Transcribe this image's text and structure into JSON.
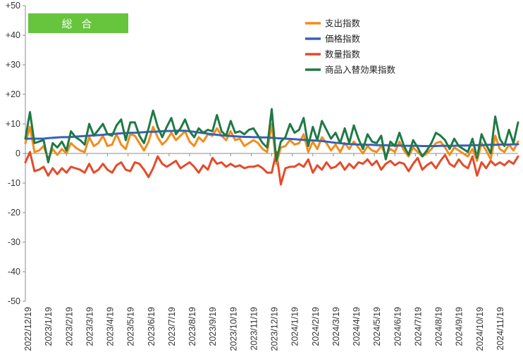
{
  "chart_data": {
    "type": "line",
    "badge": {
      "label": "総 合",
      "color": "#66c43d"
    },
    "ylim": [
      -50,
      50
    ],
    "yticks": [
      "+50",
      "+40",
      "+30",
      "+20",
      "+10",
      "0",
      "-10",
      "-20",
      "-30",
      "-40",
      "-50"
    ],
    "x_labels": [
      "2022/12/19",
      "2023/1/19",
      "2023/2/19",
      "2023/3/19",
      "2023/4/19",
      "2023/5/19",
      "2023/6/19",
      "2023/7/19",
      "2023/8/19",
      "2023/9/19",
      "2023/10/19",
      "2023/11/19",
      "2023/12/19",
      "2024/1/19",
      "2024/2/19",
      "2024/3/19",
      "2024/4/19",
      "2024/5/19",
      "2024/6/19",
      "2024/7/19",
      "2024/8/19",
      "2024/9/19",
      "2024/10/19",
      "2024/11/19"
    ],
    "grid": false,
    "legend_position": "top-right",
    "series": [
      {
        "name": "支出指数",
        "color": "#f28c1b",
        "values": [
          3.5,
          9.0,
          0.5,
          1.0,
          2.5,
          -2.0,
          1.5,
          -0.5,
          1.5,
          0.0,
          3.5,
          2.0,
          1.0,
          0.5,
          5.5,
          2.5,
          3.5,
          6.0,
          2.5,
          3.0,
          6.5,
          3.0,
          1.5,
          6.5,
          6.0,
          3.5,
          1.0,
          4.0,
          9.0,
          5.5,
          3.0,
          4.5,
          7.0,
          4.5,
          6.0,
          7.5,
          4.0,
          2.5,
          5.5,
          4.0,
          6.5,
          6.0,
          8.5,
          6.0,
          4.5,
          7.5,
          4.5,
          5.0,
          2.5,
          3.5,
          4.5,
          3.5,
          1.5,
          0.5,
          10.0,
          -3.5,
          2.0,
          2.5,
          4.5,
          3.0,
          3.5,
          6.5,
          0.5,
          4.0,
          1.5,
          5.5,
          3.5,
          1.0,
          3.0,
          0.5,
          3.5,
          1.5,
          4.0,
          2.0,
          0.0,
          2.5,
          1.0,
          0.5,
          2.5,
          -0.5,
          1.5,
          0.5,
          4.0,
          1.0,
          -1.0,
          2.0,
          0.5,
          -1.0,
          0.0,
          1.5,
          3.5,
          4.0,
          2.0,
          -0.5,
          2.0,
          1.0,
          0.0,
          -1.0,
          1.5,
          -2.5,
          3.5,
          1.0,
          -2.0,
          6.0,
          1.5,
          0.5,
          3.0,
          1.0,
          4.0
        ]
      },
      {
        "name": "価格指数",
        "color": "#3a5fbe",
        "values": [
          5.0,
          5.0,
          5.0,
          5.0,
          5.0,
          5.2,
          5.3,
          5.4,
          5.5,
          5.5,
          5.6,
          5.7,
          5.8,
          5.9,
          6.0,
          6.1,
          6.2,
          6.3,
          6.5,
          6.6,
          6.7,
          6.8,
          6.9,
          7.0,
          7.0,
          7.1,
          7.2,
          7.3,
          7.3,
          7.4,
          7.5,
          7.6,
          7.6,
          7.7,
          7.7,
          7.7,
          7.5,
          7.3,
          7.1,
          6.9,
          6.7,
          6.5,
          6.3,
          6.1,
          6.0,
          5.9,
          5.8,
          5.7,
          5.6,
          5.6,
          5.5,
          5.5,
          5.4,
          5.4,
          5.3,
          5.2,
          5.1,
          5.0,
          4.9,
          4.8,
          4.7,
          4.6,
          4.5,
          4.4,
          4.3,
          4.2,
          4.0,
          3.8,
          3.6,
          3.5,
          3.3,
          3.2,
          3.1,
          3.0,
          3.0,
          2.9,
          2.9,
          2.8,
          2.8,
          2.8,
          2.7,
          2.7,
          2.7,
          2.6,
          2.6,
          2.6,
          2.6,
          2.5,
          2.5,
          2.5,
          2.5,
          2.6,
          2.6,
          2.6,
          2.6,
          2.7,
          2.7,
          2.7,
          2.8,
          2.8,
          2.8,
          2.9,
          2.9,
          2.9,
          3.0,
          3.0,
          3.0,
          3.1,
          3.1
        ]
      },
      {
        "name": "数量指数",
        "color": "#e54a2b",
        "values": [
          -3.0,
          0.5,
          -6.0,
          -5.5,
          -4.5,
          -7.5,
          -5.0,
          -7.0,
          -5.0,
          -6.5,
          -4.5,
          -5.0,
          -5.5,
          -6.5,
          -3.5,
          -6.5,
          -5.5,
          -3.5,
          -5.5,
          -6.5,
          -4.0,
          -3.0,
          -5.5,
          -6.0,
          -3.0,
          -3.5,
          -5.5,
          -8.0,
          -5.0,
          -1.0,
          -3.5,
          -4.5,
          -3.5,
          -2.5,
          -5.0,
          -4.0,
          -3.0,
          -4.5,
          -6.5,
          -4.0,
          -5.5,
          -1.5,
          -3.5,
          -3.0,
          -4.5,
          -3.5,
          -4.5,
          -4.0,
          -5.0,
          -4.5,
          -4.5,
          -4.0,
          -5.0,
          -6.5,
          -6.5,
          0.5,
          -10.5,
          -5.0,
          -4.5,
          -4.5,
          -3.5,
          -4.5,
          -2.0,
          -6.5,
          -4.0,
          -5.5,
          -3.0,
          -5.0,
          -4.5,
          -3.0,
          -5.5,
          -3.5,
          -5.0,
          -3.0,
          -3.5,
          -2.0,
          -4.0,
          -2.5,
          -5.5,
          -3.5,
          -2.5,
          -4.0,
          -3.0,
          -3.5,
          -6.0,
          -3.5,
          -1.5,
          -5.5,
          -4.0,
          -3.0,
          -5.0,
          -2.5,
          -0.5,
          -3.5,
          -4.5,
          -2.0,
          -4.0,
          -5.0,
          -1.0,
          -7.5,
          -3.0,
          -5.0,
          -2.5,
          -4.0,
          -3.0,
          -4.0,
          -2.5,
          -3.5,
          -1.0
        ]
      },
      {
        "name": "商品入替効果指数",
        "color": "#1f7a45",
        "values": [
          5.0,
          14.0,
          3.5,
          4.0,
          4.5,
          -3.0,
          3.5,
          2.0,
          4.0,
          1.0,
          7.5,
          5.5,
          4.5,
          3.0,
          10.0,
          6.0,
          8.0,
          10.0,
          6.5,
          6.0,
          9.5,
          11.5,
          4.5,
          10.5,
          10.5,
          6.0,
          3.5,
          8.5,
          14.5,
          9.0,
          5.5,
          9.0,
          12.0,
          6.5,
          8.5,
          11.5,
          7.5,
          5.5,
          8.5,
          7.0,
          8.0,
          7.5,
          13.0,
          7.5,
          6.0,
          11.0,
          7.0,
          7.5,
          6.5,
          8.0,
          8.5,
          6.0,
          3.5,
          2.0,
          15.0,
          -2.5,
          4.0,
          5.5,
          10.0,
          7.0,
          8.0,
          12.0,
          2.5,
          9.0,
          4.5,
          11.0,
          8.0,
          5.0,
          7.0,
          3.5,
          8.5,
          3.5,
          9.5,
          5.0,
          1.5,
          6.5,
          4.0,
          3.5,
          6.0,
          -2.0,
          4.0,
          2.5,
          7.0,
          2.5,
          -0.5,
          4.5,
          2.0,
          -1.0,
          1.0,
          3.5,
          7.0,
          6.0,
          4.5,
          1.5,
          5.0,
          2.5,
          1.5,
          0.5,
          5.0,
          -1.5,
          6.5,
          3.0,
          0.0,
          12.5,
          5.0,
          2.5,
          8.0,
          3.5,
          10.5
        ]
      }
    ]
  }
}
